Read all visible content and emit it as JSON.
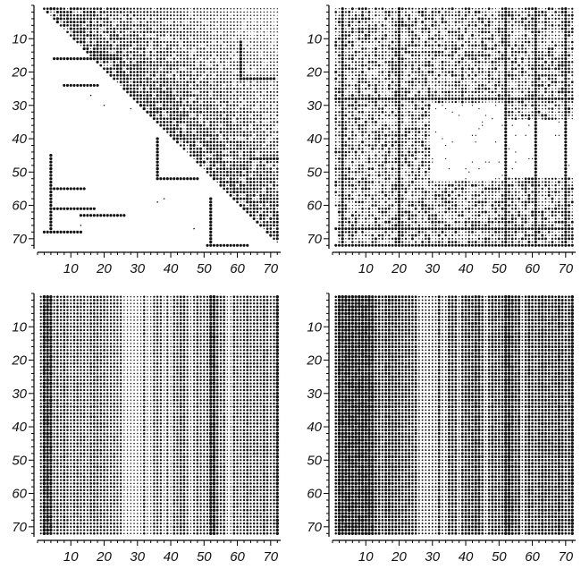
{
  "chart_data": [
    {
      "id": "top-left",
      "type": "heatmap",
      "title": "",
      "xlabel": "",
      "ylabel": "",
      "xlim": [
        0,
        73
      ],
      "ylim": [
        73,
        0
      ],
      "x_ticks": [
        "10",
        "20",
        "30",
        "40",
        "50",
        "60",
        "70"
      ],
      "y_ticks": [
        "10",
        "20",
        "30",
        "40",
        "50",
        "60",
        "70"
      ],
      "matrix_size": 72,
      "pattern": "upper-triangle-gradient",
      "description_of_values": "dot size = magnitude; upper triangle shaded with gradient, lower triangle sparse with dense blocks",
      "dense_lines": [
        {
          "axis": "row",
          "index": 16,
          "from": 5,
          "to": 25
        },
        {
          "axis": "row",
          "index": 24,
          "from": 8,
          "to": 18
        },
        {
          "axis": "row",
          "index": 52,
          "from": 36,
          "to": 48
        },
        {
          "axis": "row",
          "index": 55,
          "from": 4,
          "to": 14
        },
        {
          "axis": "row",
          "index": 61,
          "from": 4,
          "to": 17
        },
        {
          "axis": "row",
          "index": 63,
          "from": 13,
          "to": 26
        },
        {
          "axis": "row",
          "index": 68,
          "from": 2,
          "to": 13
        },
        {
          "axis": "row",
          "index": 72,
          "from": 51,
          "to": 63
        },
        {
          "axis": "row",
          "index": 22,
          "from": 61,
          "to": 71
        },
        {
          "axis": "row",
          "index": 46,
          "from": 64,
          "to": 72
        },
        {
          "axis": "col",
          "index": 52,
          "from": 58,
          "to": 72
        },
        {
          "axis": "col",
          "index": 36,
          "from": 40,
          "to": 52
        },
        {
          "axis": "col",
          "index": 4,
          "from": 45,
          "to": 68
        },
        {
          "axis": "col",
          "index": 61,
          "from": 11,
          "to": 22
        }
      ]
    },
    {
      "id": "top-right",
      "type": "heatmap",
      "title": "",
      "xlabel": "",
      "ylabel": "",
      "xlim": [
        0,
        73
      ],
      "ylim": [
        73,
        0
      ],
      "x_ticks": [
        "10",
        "20",
        "30",
        "40",
        "50",
        "60",
        "70"
      ],
      "y_ticks": [
        "10",
        "20",
        "30",
        "40",
        "50",
        "60",
        "70"
      ],
      "matrix_size": 72,
      "pattern": "mixed-blocks",
      "description_of_values": "dense blocks with blank squares around 35-52 and along row 28",
      "empty_blocks": [
        [
          30,
          52,
          30,
          52
        ],
        [
          35,
          51,
          52,
          72
        ]
      ],
      "dense_cols": [
        3,
        20,
        52,
        61,
        70
      ],
      "dense_rows": [
        28,
        67,
        72
      ]
    },
    {
      "id": "bottom-left",
      "type": "heatmap",
      "title": "",
      "xlabel": "",
      "ylabel": "",
      "xlim": [
        0,
        73
      ],
      "ylim": [
        73,
        0
      ],
      "x_ticks": [
        "10",
        "20",
        "30",
        "40",
        "50",
        "60",
        "70"
      ],
      "y_ticks": [
        "10",
        "20",
        "30",
        "40",
        "50",
        "60",
        "70"
      ],
      "matrix_size": 72,
      "pattern": "column-stripes",
      "description_of_values": "full matrix; dot size varies by column",
      "dark_cols": [
        2,
        3,
        4,
        52,
        53,
        72
      ],
      "light_cols": [
        26,
        27,
        28,
        29,
        30,
        31,
        33,
        34,
        38,
        40,
        46,
        57,
        58
      ]
    },
    {
      "id": "bottom-right",
      "type": "heatmap",
      "title": "",
      "xlabel": "",
      "ylabel": "",
      "xlim": [
        0,
        73
      ],
      "ylim": [
        73,
        0
      ],
      "x_ticks": [
        "10",
        "20",
        "30",
        "40",
        "50",
        "60",
        "70"
      ],
      "y_ticks": [
        "10",
        "20",
        "30",
        "40",
        "50",
        "60",
        "70"
      ],
      "matrix_size": 72,
      "pattern": "column-stripes-dark",
      "description_of_values": "full matrix, darker overall; dot size varies by column",
      "dark_cols": [
        2,
        3,
        4,
        5,
        6,
        7,
        8,
        9,
        10,
        11,
        12,
        52,
        53,
        72
      ],
      "light_cols": [
        26,
        27,
        28,
        29,
        30,
        31,
        33,
        34,
        38,
        46,
        57
      ]
    }
  ]
}
